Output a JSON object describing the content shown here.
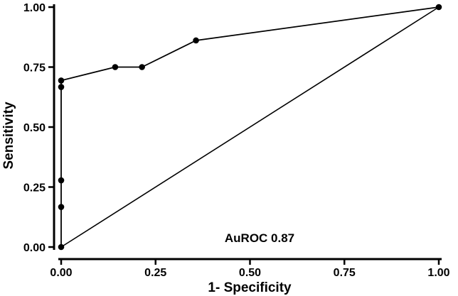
{
  "chart_data": {
    "type": "line",
    "title": "",
    "xlabel": "1- Specificity",
    "ylabel": "Sensitivity",
    "xlim": [
      0,
      1
    ],
    "ylim": [
      0,
      1
    ],
    "x_ticks": [
      "0.00",
      "0.25",
      "0.50",
      "0.75",
      "1.00"
    ],
    "y_ticks": [
      "0.00",
      "0.25",
      "0.50",
      "0.75",
      "1.00"
    ],
    "grid": false,
    "legend": "none",
    "annotation": "AuROC 0.87",
    "series": [
      {
        "x": [
          0.0,
          0.0,
          0.0,
          0.0,
          0.0,
          0.143,
          0.214,
          0.357,
          1.0
        ],
        "y": [
          0.0,
          0.167,
          0.278,
          0.667,
          0.694,
          0.75,
          0.75,
          0.861,
          1.0
        ]
      },
      {
        "x": [
          0,
          1
        ],
        "y": [
          0,
          1
        ]
      }
    ],
    "colors": {
      "line": "#000000",
      "marker": "#000000"
    }
  }
}
